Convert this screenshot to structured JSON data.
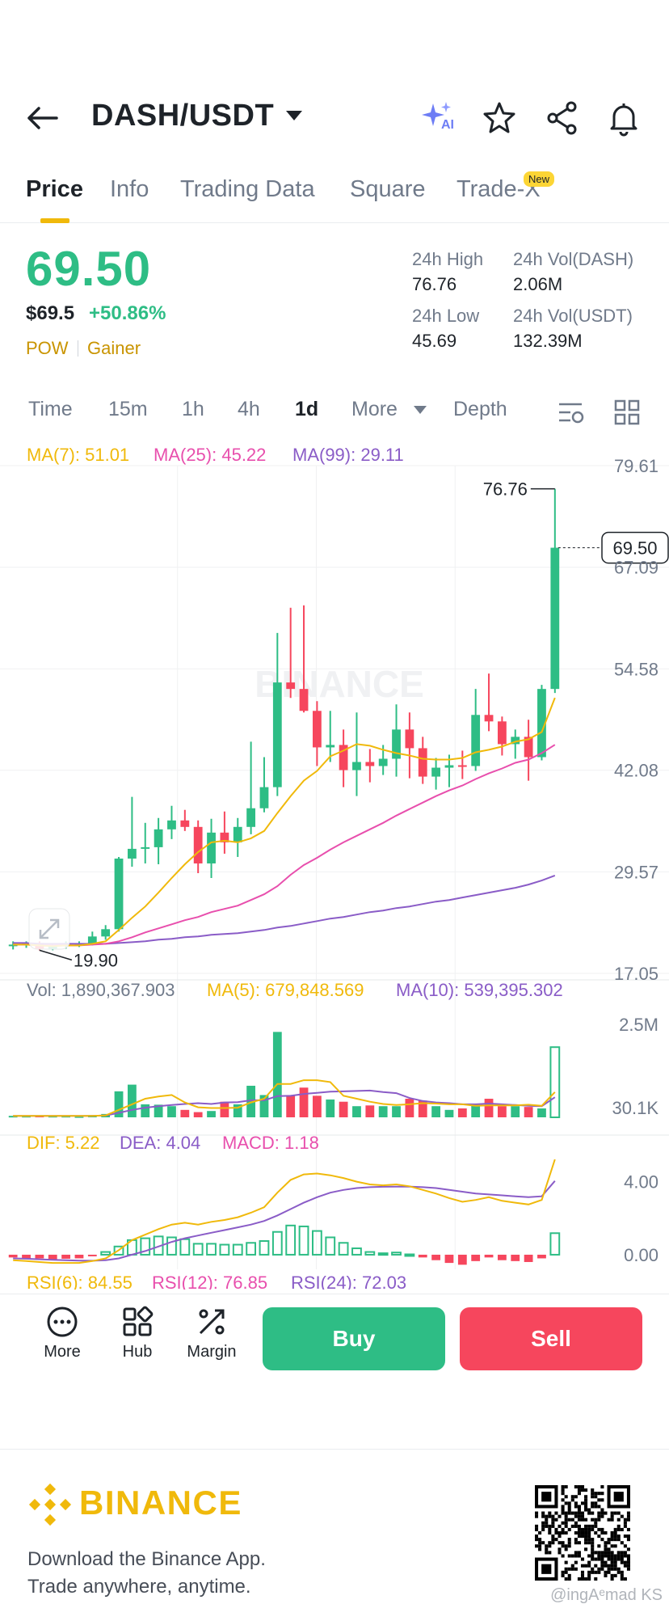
{
  "header": {
    "pair": "DASH/USDT",
    "icons": [
      "back-arrow-icon",
      "caret-down-icon",
      "ai-sparkle-icon",
      "star-icon",
      "share-icon",
      "bell-icon"
    ],
    "ai_label": "AI"
  },
  "tabs": [
    "Price",
    "Info",
    "Trading Data",
    "Square",
    "Trade-X"
  ],
  "new_badge": "New",
  "ticker": {
    "last": "69.50",
    "usd": "$69.5",
    "change": "+50.86%",
    "tags": [
      "POW",
      "Gainer"
    ],
    "high_label": "24h High",
    "high": "76.76",
    "low_label": "24h Low",
    "low": "45.69",
    "vol_base_label": "24h Vol(DASH)",
    "vol_base": "2.06M",
    "vol_quote_label": "24h Vol(USDT)",
    "vol_quote": "132.39M"
  },
  "intervals": [
    "Time",
    "15m",
    "1h",
    "4h",
    "1d",
    "More",
    "Depth"
  ],
  "active_interval": "1d",
  "chart_legend": {
    "ma7": "MA(7): 51.01",
    "ma25": "MA(25): 45.22",
    "ma99": "MA(99): 29.11",
    "vol": "Vol: 1,890,367.903",
    "vol_ma5": "MA(5): 679,848.569",
    "vol_ma10": "MA(10): 539,395.302",
    "dif": "DIF: 5.22",
    "dea": "DEA: 4.04",
    "macd": "MACD: 1.18",
    "rsi6": "RSI(6): 84.55",
    "rsi12": "RSI(12): 76.85",
    "rsi24": "RSI(24): 72.03"
  },
  "chart_watermark": "BINANCE",
  "colors": {
    "up": "#2ebd85",
    "down": "#f6465d",
    "ma7": "#f0b90b",
    "ma25": "#e84fad",
    "ma99": "#8a5cc7",
    "brand": "#f0b90b"
  },
  "chart_data": {
    "type": "candlestick",
    "price_axis_ticks": [
      "79.61",
      "67.09",
      "54.58",
      "42.08",
      "29.57",
      "17.05"
    ],
    "price_range": [
      17.05,
      79.61
    ],
    "current_price_label": "69.50",
    "high_marker": "76.76",
    "low_marker": "19.90",
    "candles": [
      {
        "o": 20.5,
        "h": 21.0,
        "l": 20.0,
        "c": 20.6
      },
      {
        "o": 20.6,
        "h": 21.0,
        "l": 20.2,
        "c": 20.8
      },
      {
        "o": 20.8,
        "h": 21.0,
        "l": 19.9,
        "c": 20.1
      },
      {
        "o": 20.1,
        "h": 20.7,
        "l": 19.9,
        "c": 20.4
      },
      {
        "o": 20.4,
        "h": 21.0,
        "l": 20.1,
        "c": 20.6
      },
      {
        "o": 20.6,
        "h": 21.0,
        "l": 20.3,
        "c": 20.7
      },
      {
        "o": 20.7,
        "h": 22.2,
        "l": 20.5,
        "c": 21.6
      },
      {
        "o": 21.6,
        "h": 23.0,
        "l": 21.2,
        "c": 22.5
      },
      {
        "o": 22.5,
        "h": 31.4,
        "l": 22.2,
        "c": 31.2
      },
      {
        "o": 31.2,
        "h": 38.8,
        "l": 30.2,
        "c": 32.4
      },
      {
        "o": 32.4,
        "h": 35.6,
        "l": 30.6,
        "c": 32.6
      },
      {
        "o": 32.6,
        "h": 36.2,
        "l": 30.5,
        "c": 34.8
      },
      {
        "o": 34.8,
        "h": 37.7,
        "l": 33.6,
        "c": 35.9
      },
      {
        "o": 35.9,
        "h": 37.2,
        "l": 34.6,
        "c": 35.1
      },
      {
        "o": 35.1,
        "h": 35.9,
        "l": 29.4,
        "c": 30.6
      },
      {
        "o": 30.6,
        "h": 36.1,
        "l": 28.8,
        "c": 34.4
      },
      {
        "o": 34.4,
        "h": 37.0,
        "l": 31.8,
        "c": 33.2
      },
      {
        "o": 33.2,
        "h": 36.2,
        "l": 31.4,
        "c": 35.1
      },
      {
        "o": 35.1,
        "h": 45.6,
        "l": 34.2,
        "c": 37.4
      },
      {
        "o": 37.4,
        "h": 43.7,
        "l": 36.9,
        "c": 40.0
      },
      {
        "o": 40.0,
        "h": 59.0,
        "l": 38.9,
        "c": 52.9
      },
      {
        "o": 52.9,
        "h": 62.1,
        "l": 51.0,
        "c": 52.1
      },
      {
        "o": 52.1,
        "h": 62.4,
        "l": 49.2,
        "c": 49.4
      },
      {
        "o": 49.4,
        "h": 50.6,
        "l": 42.6,
        "c": 44.9
      },
      {
        "o": 44.9,
        "h": 49.4,
        "l": 43.1,
        "c": 45.2
      },
      {
        "o": 45.2,
        "h": 47.1,
        "l": 40.0,
        "c": 42.1
      },
      {
        "o": 42.1,
        "h": 49.2,
        "l": 38.9,
        "c": 43.1
      },
      {
        "o": 43.1,
        "h": 44.7,
        "l": 40.6,
        "c": 42.6
      },
      {
        "o": 42.6,
        "h": 45.2,
        "l": 41.5,
        "c": 43.5
      },
      {
        "o": 43.5,
        "h": 50.2,
        "l": 41.3,
        "c": 47.1
      },
      {
        "o": 47.1,
        "h": 49.2,
        "l": 41.1,
        "c": 44.8
      },
      {
        "o": 44.8,
        "h": 46.2,
        "l": 40.4,
        "c": 41.3
      },
      {
        "o": 41.3,
        "h": 43.6,
        "l": 39.7,
        "c": 42.4
      },
      {
        "o": 42.4,
        "h": 44.0,
        "l": 40.0,
        "c": 42.7
      },
      {
        "o": 42.7,
        "h": 44.5,
        "l": 41.0,
        "c": 42.6
      },
      {
        "o": 42.6,
        "h": 52.1,
        "l": 42.0,
        "c": 48.9
      },
      {
        "o": 48.9,
        "h": 54.0,
        "l": 46.9,
        "c": 48.1
      },
      {
        "o": 48.1,
        "h": 48.7,
        "l": 43.9,
        "c": 45.3
      },
      {
        "o": 45.3,
        "h": 47.1,
        "l": 43.5,
        "c": 46.2
      },
      {
        "o": 46.2,
        "h": 48.3,
        "l": 40.8,
        "c": 43.7
      },
      {
        "o": 43.7,
        "h": 52.6,
        "l": 43.3,
        "c": 52.1
      },
      {
        "o": 52.1,
        "h": 76.76,
        "l": 51.6,
        "c": 69.5
      }
    ],
    "ma7": [
      20.6,
      20.6,
      20.5,
      20.4,
      20.5,
      20.5,
      20.7,
      21.0,
      22.4,
      23.9,
      25.3,
      27.0,
      28.8,
      30.5,
      32.0,
      33.2,
      33.4,
      33.2,
      33.7,
      34.6,
      36.8,
      38.9,
      40.8,
      42.0,
      43.8,
      44.5,
      45.3,
      45.1,
      44.6,
      44.2,
      43.9,
      43.5,
      43.4,
      43.4,
      43.6,
      44.3,
      44.6,
      45.0,
      45.6,
      45.9,
      46.8,
      51.01
    ],
    "ma25": [
      20.6,
      20.6,
      20.5,
      20.5,
      20.5,
      20.5,
      20.6,
      20.7,
      21.0,
      21.5,
      22.1,
      22.6,
      23.1,
      23.6,
      24.0,
      24.6,
      25.0,
      25.4,
      26.1,
      26.8,
      27.8,
      29.2,
      30.4,
      31.3,
      32.3,
      33.2,
      34.0,
      34.8,
      35.6,
      36.5,
      37.3,
      38.1,
      38.9,
      39.6,
      40.2,
      41.0,
      41.7,
      42.3,
      43.0,
      43.4,
      44.2,
      45.22
    ],
    "ma99": [
      20.8,
      20.8,
      20.7,
      20.7,
      20.7,
      20.7,
      20.7,
      20.7,
      20.8,
      20.9,
      21.0,
      21.2,
      21.3,
      21.5,
      21.6,
      21.8,
      21.9,
      22.0,
      22.2,
      22.4,
      22.7,
      22.9,
      23.2,
      23.5,
      23.8,
      24.0,
      24.3,
      24.6,
      24.8,
      25.1,
      25.3,
      25.6,
      25.9,
      26.1,
      26.4,
      26.7,
      27.0,
      27.3,
      27.6,
      28.0,
      28.5,
      29.11
    ],
    "volume_axis_ticks": [
      "2.5M",
      "30.1K"
    ],
    "volume_range": [
      0,
      2.7
    ],
    "volume_millions": [
      0.04,
      0.04,
      0.05,
      0.04,
      0.04,
      0.03,
      0.06,
      0.09,
      0.7,
      0.88,
      0.35,
      0.34,
      0.3,
      0.2,
      0.14,
      0.17,
      0.42,
      0.35,
      0.85,
      0.6,
      2.3,
      0.6,
      0.8,
      0.58,
      0.48,
      0.42,
      0.3,
      0.32,
      0.3,
      0.3,
      0.5,
      0.45,
      0.3,
      0.2,
      0.24,
      0.36,
      0.5,
      0.3,
      0.3,
      0.28,
      0.24,
      1.89
    ],
    "vol_ma5": [
      0.04,
      0.04,
      0.04,
      0.04,
      0.04,
      0.04,
      0.04,
      0.05,
      0.2,
      0.35,
      0.5,
      0.56,
      0.6,
      0.4,
      0.27,
      0.25,
      0.25,
      0.26,
      0.4,
      0.5,
      0.9,
      0.9,
      1.0,
      1.0,
      0.95,
      0.58,
      0.5,
      0.42,
      0.36,
      0.33,
      0.35,
      0.38,
      0.37,
      0.35,
      0.35,
      0.31,
      0.32,
      0.32,
      0.32,
      0.34,
      0.31,
      0.68
    ],
    "vol_ma10": [
      0.04,
      0.04,
      0.04,
      0.04,
      0.04,
      0.04,
      0.04,
      0.05,
      0.12,
      0.2,
      0.26,
      0.3,
      0.33,
      0.36,
      0.38,
      0.36,
      0.4,
      0.41,
      0.46,
      0.46,
      0.57,
      0.58,
      0.63,
      0.66,
      0.69,
      0.7,
      0.71,
      0.72,
      0.68,
      0.65,
      0.52,
      0.44,
      0.4,
      0.38,
      0.35,
      0.35,
      0.37,
      0.35,
      0.33,
      0.31,
      0.3,
      0.54
    ],
    "macd_axis_ticks": [
      "4.00",
      "0.00"
    ],
    "macd_range": [
      -0.8,
      5.4
    ],
    "dif": [
      -0.3,
      -0.35,
      -0.4,
      -0.45,
      -0.45,
      -0.45,
      -0.35,
      -0.2,
      0.25,
      0.8,
      1.1,
      1.4,
      1.65,
      1.75,
      1.65,
      1.8,
      1.9,
      2.05,
      2.3,
      2.6,
      3.4,
      4.1,
      4.4,
      4.45,
      4.35,
      4.2,
      4.0,
      3.85,
      3.8,
      3.85,
      3.75,
      3.55,
      3.35,
      3.1,
      2.9,
      3.0,
      3.15,
      2.95,
      2.85,
      2.75,
      3.0,
      5.22
    ],
    "dea": [
      -0.2,
      -0.22,
      -0.25,
      -0.28,
      -0.3,
      -0.32,
      -0.33,
      -0.3,
      -0.2,
      0.0,
      0.2,
      0.45,
      0.7,
      0.9,
      1.05,
      1.2,
      1.35,
      1.5,
      1.65,
      1.85,
      2.15,
      2.5,
      2.85,
      3.15,
      3.4,
      3.55,
      3.65,
      3.7,
      3.72,
      3.73,
      3.73,
      3.7,
      3.65,
      3.55,
      3.45,
      3.35,
      3.3,
      3.25,
      3.2,
      3.15,
      3.2,
      4.04
    ],
    "macd_hist": [
      -0.15,
      -0.2,
      -0.2,
      -0.25,
      -0.22,
      -0.2,
      -0.08,
      0.15,
      0.45,
      0.8,
      0.9,
      1.0,
      0.95,
      0.85,
      0.6,
      0.6,
      0.55,
      0.55,
      0.65,
      0.75,
      1.25,
      1.6,
      1.55,
      1.3,
      0.95,
      0.65,
      0.35,
      0.15,
      0.08,
      0.12,
      0.02,
      -0.15,
      -0.3,
      -0.45,
      -0.55,
      -0.35,
      -0.15,
      -0.3,
      -0.35,
      -0.4,
      -0.2,
      1.18
    ],
    "macd_ylabel": "",
    "xlabel": ""
  },
  "bottom_bar": {
    "more": "More",
    "hub": "Hub",
    "margin": "Margin",
    "buy": "Buy",
    "sell": "Sell"
  },
  "footer": {
    "brand": "BINANCE",
    "line1": "Download the Binance App.",
    "line2": "Trade anywhere, anytime.",
    "watermark": "@ingAᵉmad KS"
  }
}
